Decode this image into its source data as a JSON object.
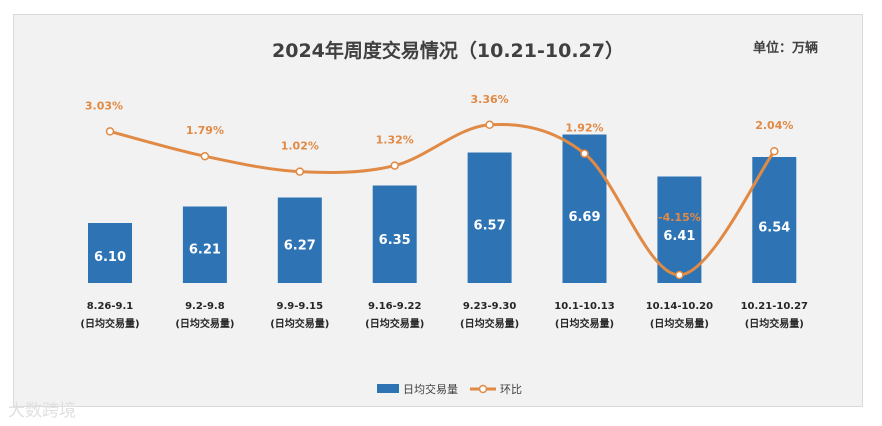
{
  "colors": {
    "bar": "#2e74b5",
    "line": "#e08a45",
    "background": "#f2f2f2",
    "text": "#404040"
  },
  "unit_label": "单位：万辆",
  "watermark": "大数跨境",
  "chart_data": {
    "type": "bar",
    "title": "2024年周度交易情况（10.21-10.27）",
    "categories": [
      "8.26-9.1",
      "9.2-9.8",
      "9.9-9.15",
      "9.16-9.22",
      "9.23-9.30",
      "10.1-10.13",
      "10.14-10.20",
      "10.21-10.27"
    ],
    "category_note": "(日均交易量)",
    "series": [
      {
        "name": "日均交易量",
        "type": "bar",
        "values": [
          6.1,
          6.21,
          6.27,
          6.35,
          6.57,
          6.69,
          6.41,
          6.54
        ],
        "labels": [
          "6.10",
          "6.21",
          "6.27",
          "6.35",
          "6.57",
          "6.69",
          "6.41",
          "6.54"
        ]
      },
      {
        "name": "环比",
        "type": "line",
        "values": [
          3.03,
          1.79,
          1.02,
          1.32,
          3.36,
          1.92,
          -4.15,
          2.04
        ],
        "labels": [
          "3.03%",
          "1.79%",
          "1.02%",
          "1.32%",
          "3.36%",
          "1.92%",
          "-4.15%",
          "2.04%"
        ]
      }
    ],
    "bar_ylim": [
      5.7,
      6.8
    ],
    "line_ylim": [
      -5.0,
      5.0
    ],
    "legend_position": "bottom-center"
  }
}
